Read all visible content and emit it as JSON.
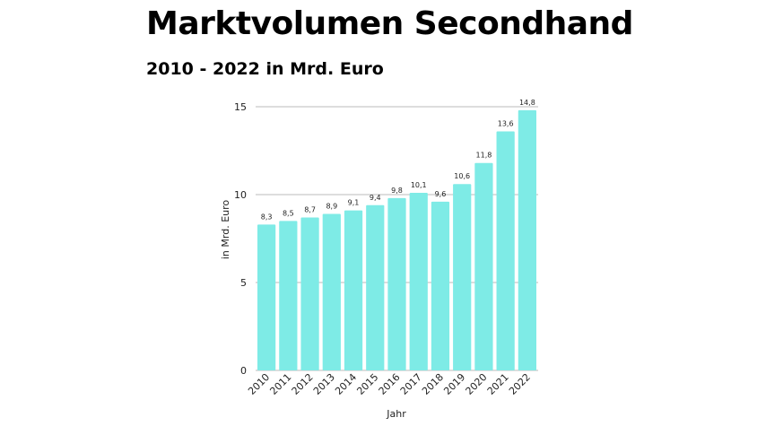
{
  "header": {
    "title": "Marktvolumen Secondhand",
    "subtitle": "2010 - 2022 in Mrd. Euro"
  },
  "chart_data": {
    "type": "bar",
    "title": "Marktvolumen Secondhand",
    "subtitle": "2010 - 2022 in Mrd. Euro",
    "xlabel": "Jahr",
    "ylabel": "in Mrd. Euro",
    "categories": [
      "2010",
      "2011",
      "2012",
      "2013",
      "2014",
      "2015",
      "2016",
      "2017",
      "2018",
      "2019",
      "2020",
      "2021",
      "2022"
    ],
    "values": [
      8.3,
      8.5,
      8.7,
      8.9,
      9.1,
      9.4,
      9.8,
      10.1,
      9.6,
      10.6,
      11.8,
      13.6,
      14.8
    ],
    "data_labels": [
      "8,3",
      "8,5",
      "8,7",
      "8,9",
      "9,1",
      "9,4",
      "9,8",
      "10,1",
      "9,6",
      "10,6",
      "11,8",
      "13,6",
      "14,8"
    ],
    "ylim": [
      0,
      15
    ],
    "yticks": [
      0,
      5,
      10,
      15
    ],
    "ytick_labels": [
      "0",
      "5",
      "10",
      "15"
    ],
    "grid": true,
    "legend": "none",
    "bar_color": "#7EEBE6",
    "grid_color": "#BBBBBB"
  }
}
